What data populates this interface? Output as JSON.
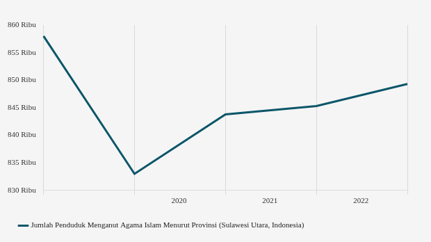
{
  "chart_data": {
    "type": "line",
    "categories": [
      null,
      "2020",
      "2021",
      "2022",
      null
    ],
    "series": [
      {
        "name": "Jumlah Penduduk Menganut Agama Islam Menurut Provinsi (Sulawesi Utara, Indonesia)",
        "color": "#0b5669",
        "values": [
          858,
          833,
          843.8,
          845.3,
          849.3
        ]
      }
    ],
    "ylim": [
      830,
      860
    ],
    "yticks": [
      {
        "value": 830,
        "label": "830 Ribu"
      },
      {
        "value": 835,
        "label": "835 Ribu"
      },
      {
        "value": 840,
        "label": "840 Ribu"
      },
      {
        "value": 845,
        "label": "845 Ribu"
      },
      {
        "value": 850,
        "label": "850 Ribu"
      },
      {
        "value": 855,
        "label": "855 Ribu"
      },
      {
        "value": 860,
        "label": "860 Ribu"
      }
    ],
    "grid": true,
    "legend": "bottom"
  }
}
